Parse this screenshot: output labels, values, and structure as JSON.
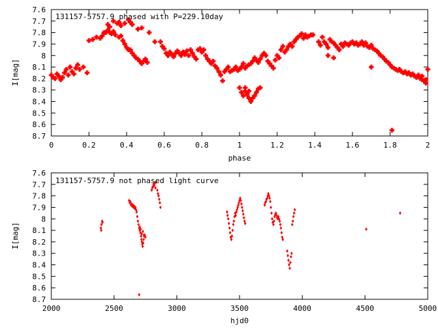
{
  "chart_data": [
    {
      "type": "scatter",
      "title": "131157-5757.9 phased with P=229.10day",
      "xlabel": "phase",
      "ylabel": "I[mag]",
      "xlim": [
        0,
        2
      ],
      "ylim": [
        7.6,
        8.7
      ],
      "y_inverted": true,
      "xticks": [
        "0",
        "0.2",
        "0.4",
        "0.6",
        "0.8",
        "1",
        "1.2",
        "1.4",
        "1.6",
        "1.8",
        "2"
      ],
      "yticks": [
        "7.6",
        "7.7",
        "7.8",
        "7.9",
        "8",
        "8.1",
        "8.2",
        "8.3",
        "8.4",
        "8.5",
        "8.6",
        "8.7"
      ],
      "color": "#ff0000",
      "grid": false,
      "points": [
        [
          0.0,
          8.17
        ],
        [
          0.01,
          8.19
        ],
        [
          0.02,
          8.2
        ],
        [
          0.03,
          8.16
        ],
        [
          0.04,
          8.18
        ],
        [
          0.05,
          8.21
        ],
        [
          0.06,
          8.19
        ],
        [
          0.07,
          8.15
        ],
        [
          0.08,
          8.12
        ],
        [
          0.09,
          8.17
        ],
        [
          0.1,
          8.1
        ],
        [
          0.11,
          8.14
        ],
        [
          0.12,
          8.16
        ],
        [
          0.13,
          8.11
        ],
        [
          0.14,
          8.08
        ],
        [
          0.15,
          8.12
        ],
        [
          0.17,
          8.1
        ],
        [
          0.19,
          8.15
        ],
        [
          0.2,
          7.87
        ],
        [
          0.22,
          7.86
        ],
        [
          0.24,
          7.84
        ],
        [
          0.26,
          7.85
        ],
        [
          0.27,
          7.83
        ],
        [
          0.28,
          7.8
        ],
        [
          0.29,
          7.8
        ],
        [
          0.3,
          7.78
        ],
        [
          0.31,
          7.8
        ],
        [
          0.32,
          7.81
        ],
        [
          0.33,
          7.79
        ],
        [
          0.34,
          7.82
        ],
        [
          0.3,
          7.73
        ],
        [
          0.31,
          7.75
        ],
        [
          0.33,
          7.7
        ],
        [
          0.35,
          7.72
        ],
        [
          0.36,
          7.71
        ],
        [
          0.37,
          7.74
        ],
        [
          0.39,
          7.72
        ],
        [
          0.41,
          7.69
        ],
        [
          0.42,
          7.71
        ],
        [
          0.43,
          7.73
        ],
        [
          0.46,
          7.77
        ],
        [
          0.48,
          7.76
        ],
        [
          0.36,
          7.84
        ],
        [
          0.37,
          7.83
        ],
        [
          0.38,
          7.87
        ],
        [
          0.39,
          7.9
        ],
        [
          0.4,
          7.93
        ],
        [
          0.41,
          7.95
        ],
        [
          0.42,
          7.95
        ],
        [
          0.43,
          7.98
        ],
        [
          0.44,
          8.0
        ],
        [
          0.45,
          8.02
        ],
        [
          0.46,
          8.03
        ],
        [
          0.47,
          8.05
        ],
        [
          0.48,
          8.07
        ],
        [
          0.49,
          8.05
        ],
        [
          0.5,
          8.03
        ],
        [
          0.51,
          8.06
        ],
        [
          0.52,
          7.8
        ],
        [
          0.55,
          7.88
        ],
        [
          0.58,
          7.88
        ],
        [
          0.59,
          7.92
        ],
        [
          0.6,
          7.94
        ],
        [
          0.61,
          7.98
        ],
        [
          0.62,
          8.0
        ],
        [
          0.63,
          7.97
        ],
        [
          0.64,
          7.99
        ],
        [
          0.65,
          8.01
        ],
        [
          0.66,
          7.98
        ],
        [
          0.67,
          7.96
        ],
        [
          0.68,
          7.98
        ],
        [
          0.69,
          8.0
        ],
        [
          0.7,
          7.97
        ],
        [
          0.71,
          7.99
        ],
        [
          0.72,
          7.96
        ],
        [
          0.73,
          8.0
        ],
        [
          0.74,
          7.95
        ],
        [
          0.75,
          7.98
        ],
        [
          0.76,
          8.01
        ],
        [
          0.77,
          8.03
        ],
        [
          0.78,
          7.95
        ],
        [
          0.79,
          7.94
        ],
        [
          0.8,
          7.97
        ],
        [
          0.81,
          7.95
        ],
        [
          0.82,
          8.0
        ],
        [
          0.83,
          8.03
        ],
        [
          0.84,
          8.05
        ],
        [
          0.85,
          8.07
        ],
        [
          0.86,
          8.05
        ],
        [
          0.87,
          8.09
        ],
        [
          0.88,
          8.11
        ],
        [
          0.89,
          8.14
        ],
        [
          0.9,
          8.17
        ],
        [
          0.91,
          8.22
        ],
        [
          0.92,
          8.14
        ],
        [
          0.93,
          8.12
        ],
        [
          0.94,
          8.1
        ],
        [
          0.95,
          8.14
        ],
        [
          0.96,
          8.13
        ],
        [
          0.97,
          8.12
        ],
        [
          0.98,
          8.1
        ],
        [
          0.99,
          8.13
        ],
        [
          1.0,
          8.12
        ],
        [
          1.01,
          8.1
        ],
        [
          1.02,
          8.07
        ],
        [
          1.03,
          8.11
        ],
        [
          1.04,
          8.09
        ],
        [
          1.05,
          8.08
        ],
        [
          1.06,
          8.07
        ],
        [
          1.07,
          8.05
        ],
        [
          1.08,
          8.02
        ],
        [
          1.09,
          8.04
        ],
        [
          1.1,
          8.06
        ],
        [
          1.11,
          8.03
        ],
        [
          1.12,
          8.0
        ],
        [
          1.13,
          7.98
        ],
        [
          1.14,
          8.0
        ],
        [
          1.15,
          8.05
        ],
        [
          1.16,
          8.07
        ],
        [
          1.17,
          8.09
        ],
        [
          1.18,
          8.11
        ],
        [
          1.19,
          8.04
        ],
        [
          1.2,
          8.0
        ],
        [
          1.21,
          8.02
        ],
        [
          1.22,
          7.95
        ],
        [
          1.23,
          7.92
        ],
        [
          1.24,
          7.97
        ],
        [
          1.25,
          7.95
        ],
        [
          1.26,
          7.92
        ],
        [
          1.27,
          7.9
        ],
        [
          1.28,
          7.92
        ],
        [
          1.29,
          7.88
        ],
        [
          1.3,
          7.86
        ],
        [
          1.31,
          7.84
        ],
        [
          1.32,
          7.83
        ],
        [
          1.33,
          7.81
        ],
        [
          1.34,
          7.85
        ],
        [
          1.35,
          7.82
        ],
        [
          1.36,
          7.84
        ],
        [
          1.37,
          7.83
        ],
        [
          1.38,
          7.82
        ],
        [
          1.39,
          7.82
        ],
        [
          1.0,
          8.28
        ],
        [
          1.01,
          8.32
        ],
        [
          1.02,
          8.35
        ],
        [
          1.03,
          8.31
        ],
        [
          1.04,
          8.34
        ],
        [
          1.05,
          8.37
        ],
        [
          1.06,
          8.4
        ],
        [
          1.07,
          8.37
        ],
        [
          1.08,
          8.35
        ],
        [
          1.09,
          8.32
        ],
        [
          1.1,
          8.29
        ],
        [
          1.11,
          8.28
        ],
        [
          1.03,
          8.28
        ],
        [
          1.05,
          8.31
        ],
        [
          1.42,
          7.88
        ],
        [
          1.43,
          7.91
        ],
        [
          1.44,
          7.84
        ],
        [
          1.45,
          7.88
        ],
        [
          1.46,
          7.9
        ],
        [
          1.47,
          7.93
        ],
        [
          1.48,
          7.86
        ],
        [
          1.49,
          7.88
        ],
        [
          1.5,
          7.89
        ],
        [
          1.51,
          7.91
        ],
        [
          1.52,
          7.93
        ],
        [
          1.53,
          7.95
        ],
        [
          1.54,
          7.9
        ],
        [
          1.55,
          7.92
        ],
        [
          1.56,
          7.89
        ],
        [
          1.57,
          7.9
        ],
        [
          1.58,
          7.91
        ],
        [
          1.59,
          7.89
        ],
        [
          1.6,
          7.88
        ],
        [
          1.61,
          7.9
        ],
        [
          1.62,
          7.89
        ],
        [
          1.63,
          7.91
        ],
        [
          1.64,
          7.9
        ],
        [
          1.65,
          7.88
        ],
        [
          1.66,
          7.91
        ],
        [
          1.67,
          7.89
        ],
        [
          1.68,
          7.92
        ],
        [
          1.69,
          7.93
        ],
        [
          1.7,
          7.91
        ],
        [
          1.71,
          7.94
        ],
        [
          1.72,
          7.95
        ],
        [
          1.47,
          8.0
        ],
        [
          1.5,
          8.02
        ],
        [
          1.7,
          8.1
        ],
        [
          1.73,
          7.96
        ],
        [
          1.74,
          7.98
        ],
        [
          1.75,
          8.0
        ],
        [
          1.76,
          8.01
        ],
        [
          1.77,
          8.03
        ],
        [
          1.78,
          8.05
        ],
        [
          1.79,
          8.06
        ],
        [
          1.8,
          8.08
        ],
        [
          1.81,
          8.1
        ],
        [
          1.82,
          8.11
        ],
        [
          1.83,
          8.12
        ],
        [
          1.84,
          8.13
        ],
        [
          1.85,
          8.12
        ],
        [
          1.86,
          8.14
        ],
        [
          1.87,
          8.15
        ],
        [
          1.88,
          8.14
        ],
        [
          1.89,
          8.16
        ],
        [
          1.9,
          8.15
        ],
        [
          1.91,
          8.17
        ],
        [
          1.92,
          8.16
        ],
        [
          1.93,
          8.18
        ],
        [
          1.94,
          8.19
        ],
        [
          1.95,
          8.17
        ],
        [
          1.96,
          8.2
        ],
        [
          1.97,
          8.21
        ],
        [
          1.98,
          8.22
        ],
        [
          1.99,
          8.24
        ],
        [
          1.97,
          8.18
        ],
        [
          1.99,
          8.21
        ],
        [
          2.0,
          8.12
        ],
        [
          1.81,
          8.65
        ]
      ]
    },
    {
      "type": "scatter",
      "title": "131157-5757.9 not phased light curve",
      "xlabel": "hjd0",
      "ylabel": "I[mag]",
      "xlim": [
        2000,
        5000
      ],
      "ylim": [
        7.6,
        8.7
      ],
      "y_inverted": true,
      "xticks": [
        "2000",
        "2500",
        "3000",
        "3500",
        "4000",
        "4500",
        "5000"
      ],
      "yticks": [
        "7.6",
        "7.7",
        "7.8",
        "7.9",
        "8",
        "8.1",
        "8.2",
        "8.3",
        "8.4",
        "8.5",
        "8.6",
        "8.7"
      ],
      "color": "#ff0000",
      "grid": false,
      "points": [
        [
          2395,
          8.08
        ],
        [
          2398,
          8.1
        ],
        [
          2400,
          8.05
        ],
        [
          2405,
          8.02
        ],
        [
          2408,
          8.03
        ],
        [
          2620,
          7.84
        ],
        [
          2625,
          7.86
        ],
        [
          2630,
          7.85
        ],
        [
          2635,
          7.88
        ],
        [
          2640,
          7.87
        ],
        [
          2645,
          7.89
        ],
        [
          2650,
          7.88
        ],
        [
          2655,
          7.9
        ],
        [
          2660,
          7.89
        ],
        [
          2665,
          7.91
        ],
        [
          2670,
          7.9
        ],
        [
          2675,
          7.92
        ],
        [
          2680,
          7.94
        ],
        [
          2685,
          7.98
        ],
        [
          2690,
          8.02
        ],
        [
          2695,
          8.05
        ],
        [
          2700,
          8.08
        ],
        [
          2705,
          8.1
        ],
        [
          2710,
          8.12
        ],
        [
          2715,
          8.15
        ],
        [
          2718,
          8.18
        ],
        [
          2722,
          8.2
        ],
        [
          2725,
          8.22
        ],
        [
          2728,
          8.24
        ],
        [
          2732,
          8.21
        ],
        [
          2736,
          8.18
        ],
        [
          2740,
          8.15
        ],
        [
          2745,
          8.14
        ],
        [
          2750,
          8.16
        ],
        [
          2705,
          8.07
        ],
        [
          2712,
          8.09
        ],
        [
          2720,
          8.13
        ],
        [
          2730,
          8.11
        ],
        [
          2738,
          8.14
        ],
        [
          2700,
          8.66
        ],
        [
          2800,
          7.75
        ],
        [
          2805,
          7.73
        ],
        [
          2810,
          7.72
        ],
        [
          2815,
          7.7
        ],
        [
          2820,
          7.71
        ],
        [
          2825,
          7.69
        ],
        [
          2830,
          7.73
        ],
        [
          2835,
          7.68
        ],
        [
          2845,
          7.75
        ],
        [
          2850,
          7.78
        ],
        [
          2855,
          7.8
        ],
        [
          2860,
          7.83
        ],
        [
          2865,
          7.86
        ],
        [
          2870,
          7.9
        ],
        [
          3400,
          7.94
        ],
        [
          3405,
          7.97
        ],
        [
          3410,
          8.0
        ],
        [
          3415,
          8.04
        ],
        [
          3420,
          8.08
        ],
        [
          3425,
          8.12
        ],
        [
          3430,
          8.16
        ],
        [
          3435,
          8.18
        ],
        [
          3440,
          8.15
        ],
        [
          3445,
          8.1
        ],
        [
          3450,
          8.05
        ],
        [
          3455,
          8.02
        ],
        [
          3460,
          7.98
        ],
        [
          3465,
          7.95
        ],
        [
          3470,
          7.97
        ],
        [
          3475,
          7.94
        ],
        [
          3480,
          7.92
        ],
        [
          3485,
          7.9
        ],
        [
          3490,
          7.88
        ],
        [
          3495,
          7.86
        ],
        [
          3500,
          7.84
        ],
        [
          3505,
          7.82
        ],
        [
          3510,
          7.84
        ],
        [
          3515,
          7.87
        ],
        [
          3520,
          7.9
        ],
        [
          3525,
          7.93
        ],
        [
          3530,
          7.96
        ],
        [
          3535,
          7.99
        ],
        [
          3540,
          8.02
        ],
        [
          3545,
          8.04
        ],
        [
          3700,
          7.88
        ],
        [
          3705,
          7.86
        ],
        [
          3710,
          7.85
        ],
        [
          3715,
          7.83
        ],
        [
          3720,
          7.82
        ],
        [
          3725,
          7.8
        ],
        [
          3730,
          7.78
        ],
        [
          3735,
          7.8
        ],
        [
          3740,
          7.82
        ],
        [
          3745,
          7.85
        ],
        [
          3750,
          7.9
        ],
        [
          3755,
          7.95
        ],
        [
          3760,
          8.0
        ],
        [
          3765,
          8.03
        ],
        [
          3770,
          8.05
        ],
        [
          3775,
          8.02
        ],
        [
          3780,
          7.98
        ],
        [
          3785,
          7.96
        ],
        [
          3790,
          7.95
        ],
        [
          3795,
          7.97
        ],
        [
          3800,
          7.99
        ],
        [
          3805,
          8.0
        ],
        [
          3810,
          7.98
        ],
        [
          3815,
          8.0
        ],
        [
          3820,
          8.02
        ],
        [
          3825,
          8.05
        ],
        [
          3830,
          8.08
        ],
        [
          3835,
          8.12
        ],
        [
          3840,
          8.16
        ],
        [
          3845,
          8.18
        ],
        [
          3880,
          8.28
        ],
        [
          3885,
          8.32
        ],
        [
          3890,
          8.36
        ],
        [
          3895,
          8.4
        ],
        [
          3900,
          8.43
        ],
        [
          3905,
          8.38
        ],
        [
          3910,
          8.33
        ],
        [
          3915,
          8.3
        ],
        [
          3920,
          8.05
        ],
        [
          3925,
          8.02
        ],
        [
          3930,
          7.98
        ],
        [
          3935,
          7.95
        ],
        [
          3940,
          7.92
        ],
        [
          4510,
          8.09
        ],
        [
          4780,
          7.95
        ]
      ]
    }
  ]
}
